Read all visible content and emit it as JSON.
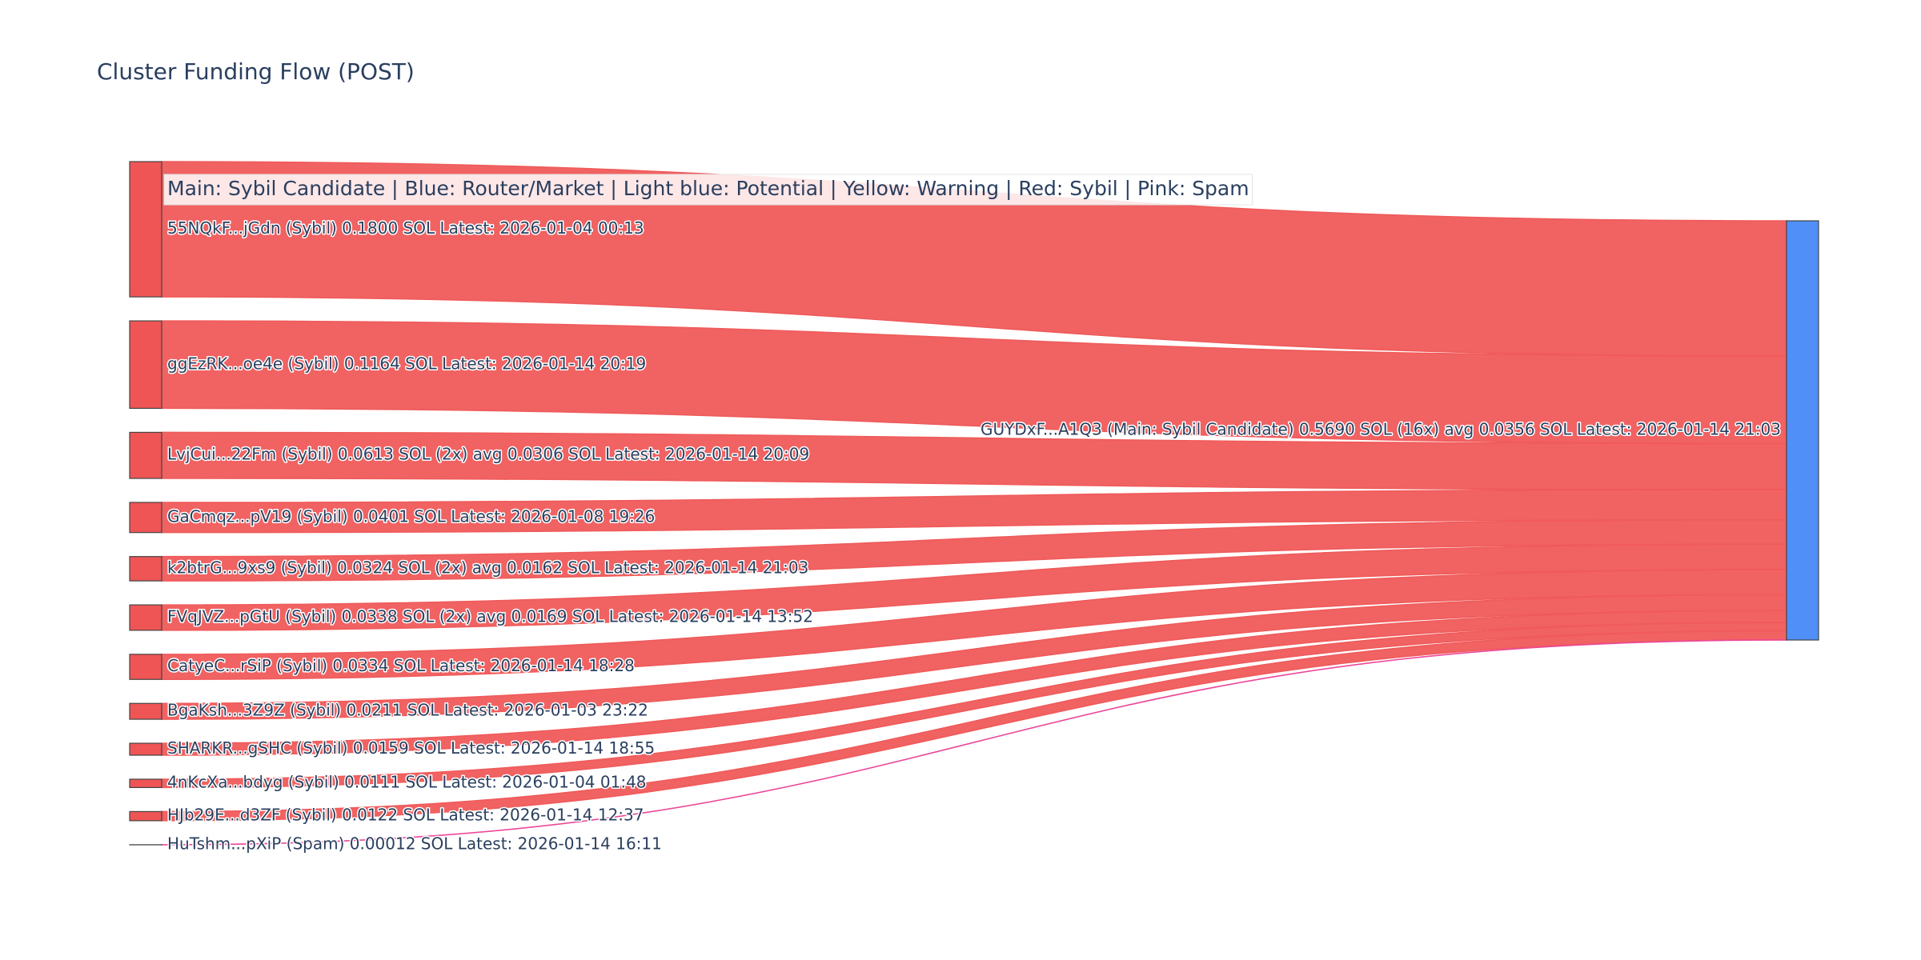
{
  "chart_data": {
    "type": "sankey",
    "title": "Cluster Funding Flow (POST)",
    "annotation": "Main: Sybil Candidate  |  Blue: Router/Market | Light blue: Potential | Yellow: Warning | Red: Sybil | Pink: Spam",
    "sources": [
      {
        "label": "55NQkF...jGdn (Sybil) 0.1800 SOL Latest: 2026-01-04 00:13",
        "value": 0.18,
        "color": "#ef5555",
        "link_color": "#f05a5a"
      },
      {
        "label": "ggEzRK...oe4e (Sybil) 0.1164 SOL Latest: 2026-01-14 20:19",
        "value": 0.1164,
        "color": "#ef5555",
        "link_color": "#f05a5a"
      },
      {
        "label": "LvjCui...22Fm (Sybil) 0.0613 SOL (2x) avg 0.0306 SOL Latest: 2026-01-14 20:09",
        "value": 0.0613,
        "color": "#ef5555",
        "link_color": "#f05a5a"
      },
      {
        "label": "GaCmqz...pV19 (Sybil) 0.0401 SOL Latest: 2026-01-08 19:26",
        "value": 0.0401,
        "color": "#ef5555",
        "link_color": "#f05a5a"
      },
      {
        "label": "k2btrG...9xs9 (Sybil) 0.0324 SOL (2x) avg 0.0162 SOL Latest: 2026-01-14 21:03",
        "value": 0.0324,
        "color": "#ef5555",
        "link_color": "#f05a5a"
      },
      {
        "label": "FVqJVZ...pGtU (Sybil) 0.0338 SOL (2x) avg 0.0169 SOL Latest: 2026-01-14 13:52",
        "value": 0.0338,
        "color": "#ef5555",
        "link_color": "#f05a5a"
      },
      {
        "label": "CatyeC...rSiP (Sybil) 0.0334 SOL Latest: 2026-01-14 18:28",
        "value": 0.0334,
        "color": "#ef5555",
        "link_color": "#f05a5a"
      },
      {
        "label": "BgaKsh...3Z9Z (Sybil) 0.0211 SOL Latest: 2026-01-03 23:22",
        "value": 0.0211,
        "color": "#ef5555",
        "link_color": "#f05a5a"
      },
      {
        "label": "SHARKR...gSHC (Sybil) 0.0159 SOL Latest: 2026-01-14 18:55",
        "value": 0.0159,
        "color": "#ef5555",
        "link_color": "#f05a5a"
      },
      {
        "label": "4nKcXa...bdyg (Sybil) 0.0111 SOL Latest: 2026-01-04 01:48",
        "value": 0.0111,
        "color": "#ef5555",
        "link_color": "#f05a5a"
      },
      {
        "label": "HJb29E...d3ZF (Sybil) 0.0122 SOL Latest: 2026-01-14 12:37",
        "value": 0.0122,
        "color": "#ef5555",
        "link_color": "#f05a5a"
      },
      {
        "label": "HuTshm...pXiP (Spam) 0.00012 SOL Latest: 2026-01-14 16:11",
        "value": 0.00012,
        "color": "#ec4899",
        "link_color": "#ec4899"
      }
    ],
    "target": {
      "label": "GUYDxF...A1Q3 (Main: Sybil Candidate) 0.5690 SOL (16x) avg 0.0356 SOL Latest: 2026-01-14 21:03",
      "color": "#4f8ff7"
    }
  }
}
